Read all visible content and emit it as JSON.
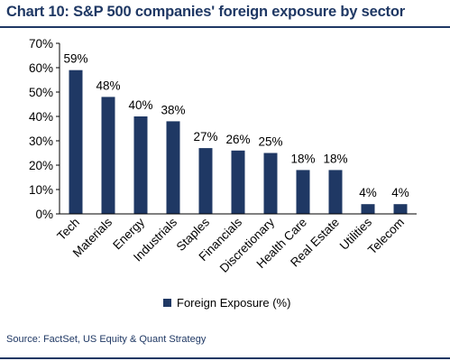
{
  "title": "Chart 10: S&P 500 companies' foreign exposure by sector",
  "source": "Source: FactSet, US Equity & Quant Strategy",
  "colors": {
    "bar": "#1f3864",
    "title": "#1f3864",
    "text": "#000000"
  },
  "chart_data": {
    "type": "bar",
    "categories": [
      "Tech",
      "Materials",
      "Energy",
      "Industrials",
      "Staples",
      "Financials",
      "Discretionary",
      "Health Care",
      "Real Estate",
      "Utilities",
      "Telecom"
    ],
    "series": [
      {
        "name": "Foreign Exposure (%)",
        "values": [
          59,
          48,
          40,
          38,
          27,
          26,
          25,
          18,
          18,
          4,
          4
        ]
      }
    ],
    "data_labels": [
      "59%",
      "48%",
      "40%",
      "38%",
      "27%",
      "26%",
      "25%",
      "18%",
      "18%",
      "4%",
      "4%"
    ],
    "yticks": [
      "0%",
      "10%",
      "20%",
      "30%",
      "40%",
      "50%",
      "60%",
      "70%"
    ],
    "ylim": [
      0,
      70
    ],
    "grid": false,
    "legend": "bottom"
  }
}
